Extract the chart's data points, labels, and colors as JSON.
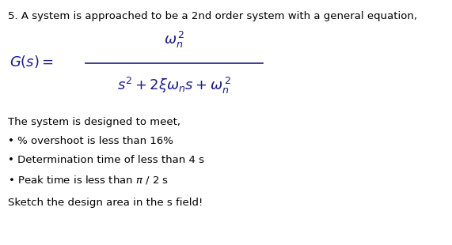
{
  "background_color": "#ffffff",
  "text_color": "#000000",
  "formula_color": "#1a1a8c",
  "fig_width": 5.71,
  "fig_height": 3.1,
  "dpi": 100,
  "line1": "5. A system is approached to be a 2nd order system with a general equation,",
  "gs_label": "$G(s) =$",
  "numerator": "$\\omega_n^{\\,2}$",
  "denominator": "$s^2 + 2\\xi\\omega_n s + \\omega_n^{\\,2}$",
  "line2": "The system is designed to meet,",
  "bullet1": "• % overshoot is less than 16%",
  "bullet2": "• Determination time of less than 4 s",
  "bullet3": "• Peak time is less than $\\pi$ / 2 s",
  "line3": "Sketch the design area in the s field!",
  "fontsize_text": 9.5,
  "fontsize_formula": 13,
  "formula_color_gs": "#1a1a8c"
}
